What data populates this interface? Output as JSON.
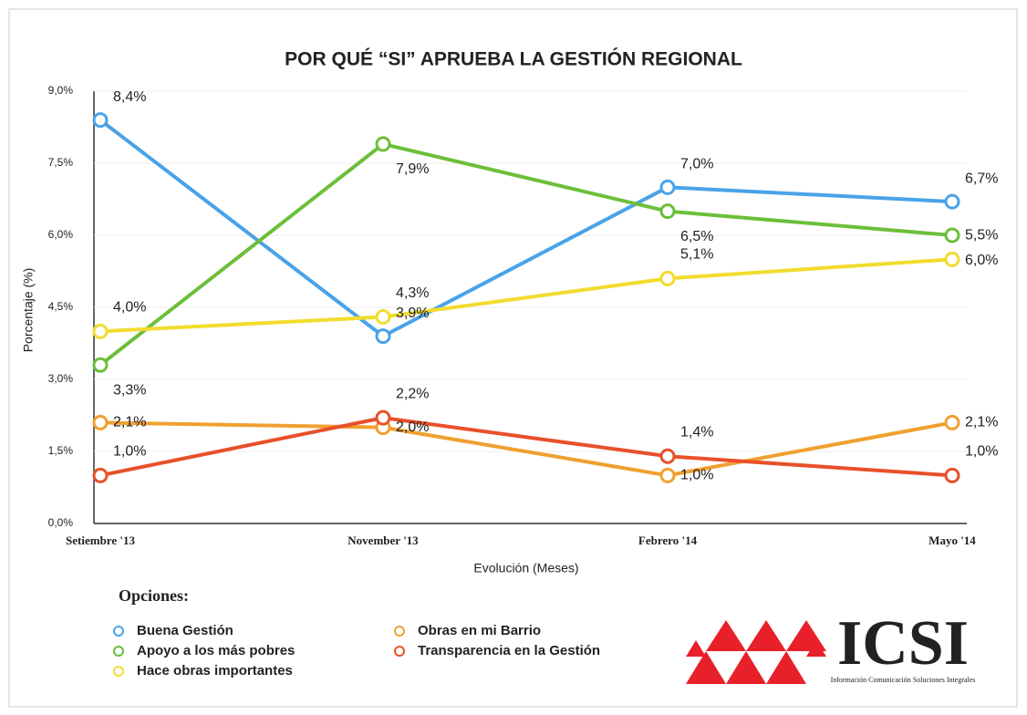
{
  "chart_data": {
    "type": "line",
    "title": "POR QUÉ “SI” APRUEBA LA GESTIÓN REGIONAL",
    "y_label": "Porcentaje (%)",
    "x_label": "Evolución (Meses)",
    "categories": [
      "Setiembre '13",
      "November '13",
      "Febrero '14",
      "Mayo '14"
    ],
    "ylim": [
      0,
      9
    ],
    "yticks": [
      {
        "value": 0,
        "label": "0,0%"
      },
      {
        "value": 1.5,
        "label": "1,5%"
      },
      {
        "value": 3,
        "label": "3,0%"
      },
      {
        "value": 4.5,
        "label": "4,5%"
      },
      {
        "value": 6,
        "label": "6,0%"
      },
      {
        "value": 7.5,
        "label": "7,5%"
      },
      {
        "value": 9,
        "label": "9,0%"
      }
    ],
    "grid": true,
    "legend_title": "Opciones:",
    "legend_position": "bottom-left",
    "series": [
      {
        "name": "Buena Gestión",
        "color": "#4aa3e8",
        "values": [
          8.4,
          3.9,
          7.0,
          6.7
        ],
        "value_labels": [
          "8,4%",
          "3,9%",
          "7,0%",
          "6,7%"
        ]
      },
      {
        "name": "Apoyo a los más pobres",
        "color": "#6cbf3a",
        "values": [
          3.3,
          7.9,
          6.5,
          6.0
        ],
        "value_labels": [
          "3,3%",
          "7,9%",
          "6,5%",
          "6,0%"
        ]
      },
      {
        "name": "Hace obras importantes",
        "color": "#f2dc2e",
        "values": [
          4.0,
          4.3,
          5.1,
          5.5
        ],
        "value_labels": [
          "4,0%",
          "4,3%",
          "5,1%",
          "5,5%"
        ]
      },
      {
        "name": "Obras en mi Barrio",
        "color": "#f0a030",
        "values": [
          2.1,
          2.0,
          1.0,
          2.1
        ],
        "value_labels": [
          "2,1%",
          "2,0%",
          "1,0%",
          "2,1%"
        ]
      },
      {
        "name": "Transparencia en la Gestión",
        "color": "#e8502a",
        "values": [
          1.0,
          2.2,
          1.4,
          1.0
        ],
        "value_labels": [
          "1,0%",
          "2,2%",
          "1,4%",
          "1,0%"
        ]
      }
    ]
  },
  "logo": {
    "name": "ICSI",
    "tagline": "Información Comunicación Soluciones Integrales"
  }
}
